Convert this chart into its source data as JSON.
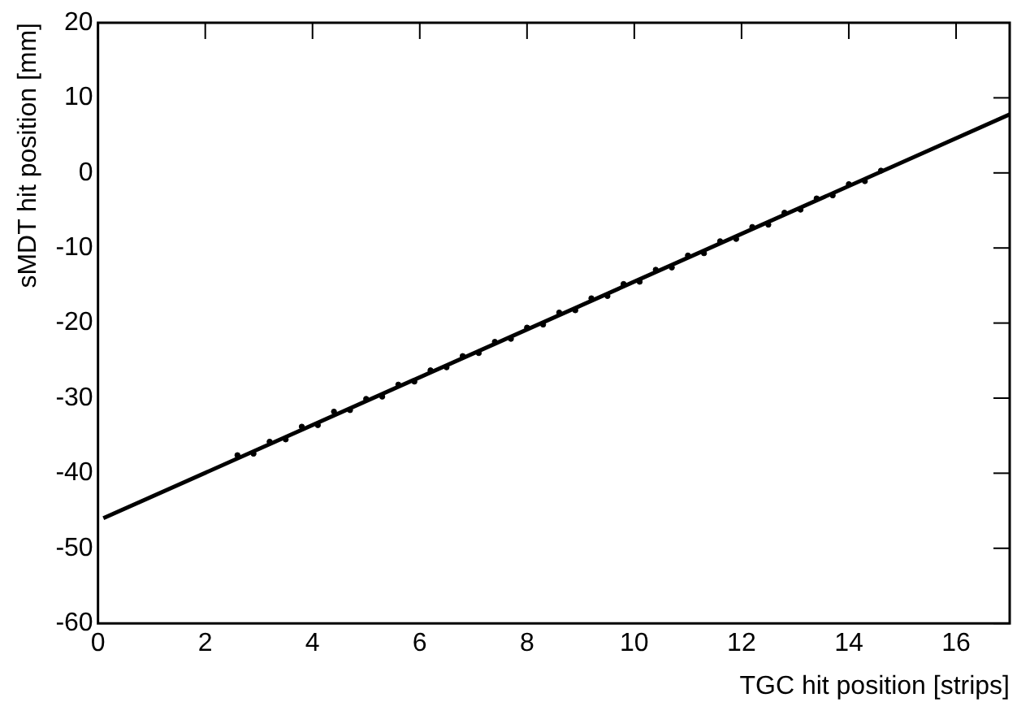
{
  "chart_data": {
    "type": "scatter",
    "xlabel": "TGC hit position [strips]",
    "ylabel": "sMDT hit position [mm]",
    "xlim": [
      0,
      17
    ],
    "xticks": [
      0,
      2,
      4,
      6,
      8,
      10,
      12,
      14,
      16
    ],
    "ylim": [
      -60,
      20
    ],
    "yticks": [
      -60,
      -50,
      -40,
      -30,
      -20,
      -10,
      0,
      10,
      20
    ],
    "grid": false,
    "legend": false,
    "marker": "circle",
    "series": [
      {
        "color": "#000000",
        "x": [
          2.6,
          2.9,
          3.2,
          3.5,
          3.8,
          4.1,
          4.4,
          4.7,
          5.0,
          5.3,
          5.6,
          5.9,
          6.2,
          6.5,
          6.8,
          7.1,
          7.4,
          7.7,
          8.0,
          8.3,
          8.6,
          8.9,
          9.2,
          9.5,
          9.8,
          10.1,
          10.4,
          10.7,
          11.0,
          11.3,
          11.6,
          11.9,
          12.2,
          12.5,
          12.8,
          13.1,
          13.4,
          13.7,
          14.0,
          14.3,
          14.6
        ],
        "values": [
          -37.6,
          -37.4,
          -35.8,
          -35.5,
          -33.8,
          -33.6,
          -31.8,
          -31.6,
          -30.1,
          -29.8,
          -28.2,
          -27.8,
          -26.3,
          -25.9,
          -24.4,
          -24.0,
          -22.5,
          -22.1,
          -20.6,
          -20.2,
          -18.6,
          -18.3,
          -16.7,
          -16.4,
          -14.8,
          -14.5,
          -12.9,
          -12.6,
          -11.0,
          -10.7,
          -9.1,
          -8.8,
          -7.2,
          -6.9,
          -5.3,
          -4.9,
          -3.4,
          -3.0,
          -1.5,
          -1.1,
          0.3
        ]
      },
      {
        "type": "line",
        "color": "#000000",
        "line_style": "solid",
        "marker": "none",
        "x": [
          0.1,
          17
        ],
        "values": [
          -46.0,
          7.8
        ]
      }
    ]
  }
}
